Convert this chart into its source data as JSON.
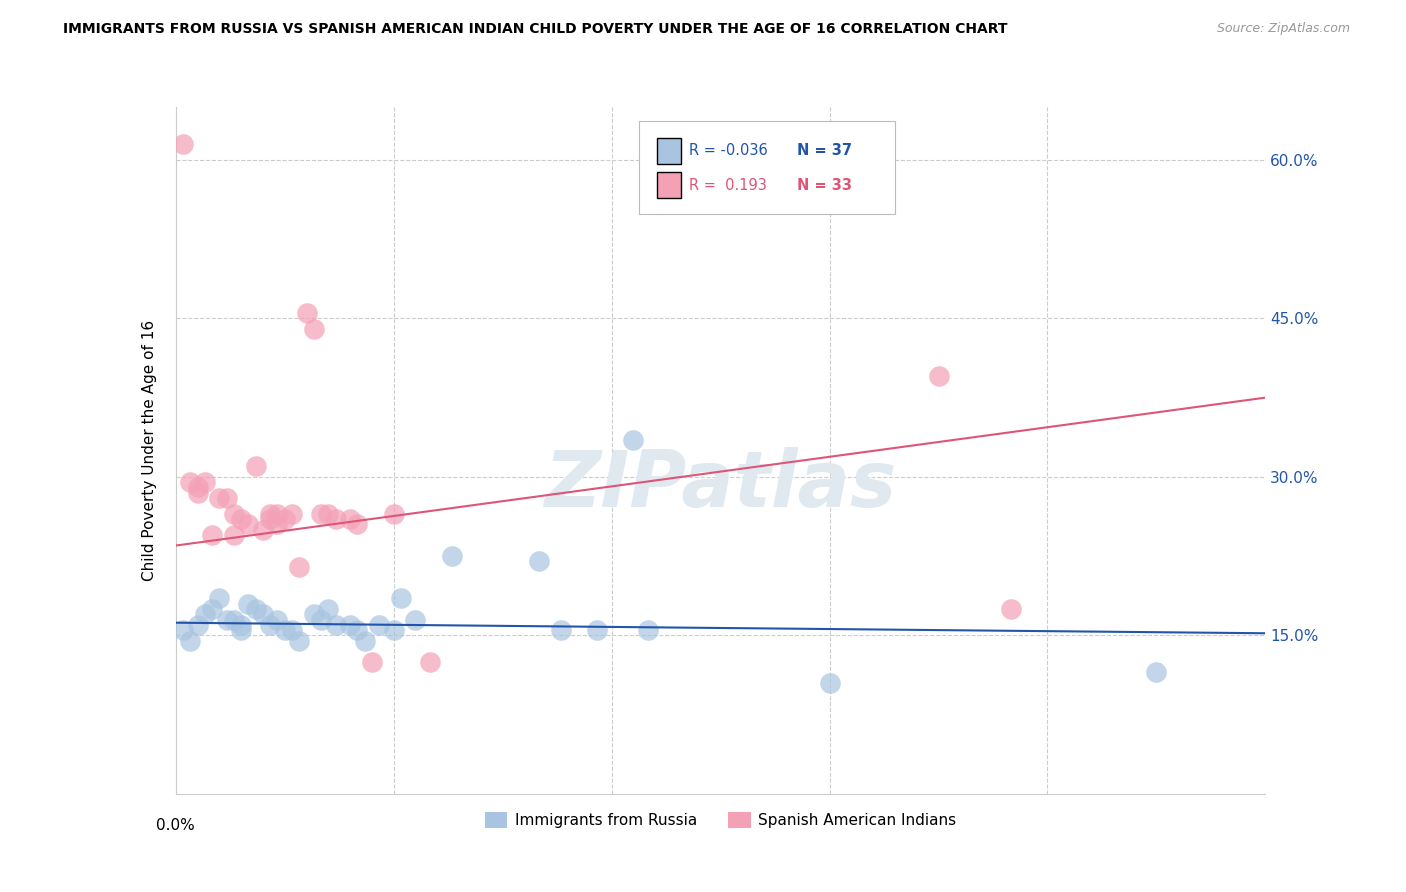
{
  "title": "IMMIGRANTS FROM RUSSIA VS SPANISH AMERICAN INDIAN CHILD POVERTY UNDER THE AGE OF 16 CORRELATION CHART",
  "source": "Source: ZipAtlas.com",
  "ylabel": "Child Poverty Under the Age of 16",
  "xlim": [
    0.0,
    0.15
  ],
  "ylim": [
    0.0,
    0.65
  ],
  "legend1_label": "Immigrants from Russia",
  "legend2_label": "Spanish American Indians",
  "R1": -0.036,
  "N1": 37,
  "R2": 0.193,
  "N2": 33,
  "color_blue": "#a8c4e0",
  "color_pink": "#f4a0b5",
  "line_blue": "#2255aa",
  "line_pink": "#dd5577",
  "watermark": "ZIPatlas",
  "blue_line_y0": 0.162,
  "blue_line_y1": 0.152,
  "pink_line_y0": 0.235,
  "pink_line_y1": 0.375,
  "scatter_blue": [
    [
      0.001,
      0.155
    ],
    [
      0.002,
      0.145
    ],
    [
      0.003,
      0.16
    ],
    [
      0.004,
      0.17
    ],
    [
      0.005,
      0.175
    ],
    [
      0.006,
      0.185
    ],
    [
      0.007,
      0.165
    ],
    [
      0.008,
      0.165
    ],
    [
      0.009,
      0.16
    ],
    [
      0.009,
      0.155
    ],
    [
      0.01,
      0.18
    ],
    [
      0.011,
      0.175
    ],
    [
      0.012,
      0.17
    ],
    [
      0.013,
      0.16
    ],
    [
      0.014,
      0.165
    ],
    [
      0.015,
      0.155
    ],
    [
      0.016,
      0.155
    ],
    [
      0.017,
      0.145
    ],
    [
      0.019,
      0.17
    ],
    [
      0.02,
      0.165
    ],
    [
      0.021,
      0.175
    ],
    [
      0.022,
      0.16
    ],
    [
      0.024,
      0.16
    ],
    [
      0.025,
      0.155
    ],
    [
      0.026,
      0.145
    ],
    [
      0.028,
      0.16
    ],
    [
      0.03,
      0.155
    ],
    [
      0.031,
      0.185
    ],
    [
      0.033,
      0.165
    ],
    [
      0.038,
      0.225
    ],
    [
      0.05,
      0.22
    ],
    [
      0.053,
      0.155
    ],
    [
      0.058,
      0.155
    ],
    [
      0.063,
      0.335
    ],
    [
      0.065,
      0.155
    ],
    [
      0.09,
      0.105
    ],
    [
      0.135,
      0.115
    ]
  ],
  "scatter_pink": [
    [
      0.001,
      0.615
    ],
    [
      0.002,
      0.295
    ],
    [
      0.003,
      0.29
    ],
    [
      0.003,
      0.285
    ],
    [
      0.004,
      0.295
    ],
    [
      0.005,
      0.245
    ],
    [
      0.006,
      0.28
    ],
    [
      0.007,
      0.28
    ],
    [
      0.008,
      0.245
    ],
    [
      0.008,
      0.265
    ],
    [
      0.009,
      0.26
    ],
    [
      0.01,
      0.255
    ],
    [
      0.011,
      0.31
    ],
    [
      0.012,
      0.25
    ],
    [
      0.013,
      0.26
    ],
    [
      0.013,
      0.265
    ],
    [
      0.014,
      0.265
    ],
    [
      0.014,
      0.255
    ],
    [
      0.015,
      0.26
    ],
    [
      0.016,
      0.265
    ],
    [
      0.017,
      0.215
    ],
    [
      0.018,
      0.455
    ],
    [
      0.019,
      0.44
    ],
    [
      0.02,
      0.265
    ],
    [
      0.021,
      0.265
    ],
    [
      0.022,
      0.26
    ],
    [
      0.024,
      0.26
    ],
    [
      0.025,
      0.255
    ],
    [
      0.027,
      0.125
    ],
    [
      0.03,
      0.265
    ],
    [
      0.035,
      0.125
    ],
    [
      0.105,
      0.395
    ],
    [
      0.115,
      0.175
    ]
  ]
}
